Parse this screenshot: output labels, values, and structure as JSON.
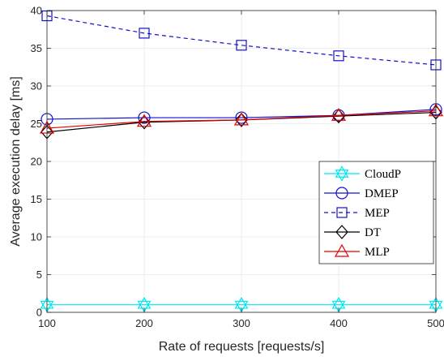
{
  "chart_data": {
    "type": "line",
    "title": "",
    "xlabel": "Rate of requests [requests/s]",
    "ylabel": "Average execution delay [ms]",
    "x": [
      100,
      200,
      300,
      400,
      500
    ],
    "xlim": [
      100,
      500
    ],
    "ylim": [
      0,
      40
    ],
    "xticks": [
      100,
      200,
      300,
      400,
      500
    ],
    "yticks": [
      0,
      5,
      10,
      15,
      20,
      25,
      30,
      35,
      40
    ],
    "grid": true,
    "legend_position": "lower-right",
    "series": [
      {
        "name": "CloudP",
        "values": [
          1.0,
          1.0,
          1.0,
          1.0,
          1.0
        ],
        "color": "#00e5ee",
        "marker": "hexagram",
        "dashed": false
      },
      {
        "name": "DMEP",
        "values": [
          25.6,
          25.8,
          25.8,
          26.1,
          26.9
        ],
        "color": "#1010d0",
        "marker": "circle",
        "dashed": false
      },
      {
        "name": "MEP",
        "values": [
          39.3,
          37.0,
          35.4,
          34.0,
          32.8
        ],
        "color": "#1010d0",
        "marker": "square",
        "dashed": true
      },
      {
        "name": "DT",
        "values": [
          23.9,
          25.2,
          25.5,
          26.0,
          26.5
        ],
        "color": "#000000",
        "marker": "diamond",
        "dashed": false
      },
      {
        "name": "MLP",
        "values": [
          24.4,
          25.3,
          25.5,
          26.1,
          26.7
        ],
        "color": "#e00000",
        "marker": "triangle",
        "dashed": false
      }
    ]
  }
}
